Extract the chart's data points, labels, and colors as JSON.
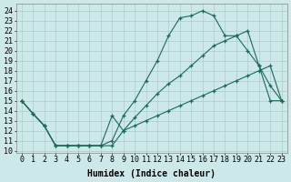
{
  "xlabel": "Humidex (Indice chaleur)",
  "background_color": "#cce8e8",
  "grid_color": "#aacccc",
  "line_color": "#1a6a5a",
  "xlim": [
    -0.5,
    23.5
  ],
  "ylim": [
    9.8,
    24.7
  ],
  "xtick_vals": [
    0,
    1,
    2,
    3,
    4,
    5,
    6,
    7,
    8,
    9,
    10,
    11,
    12,
    13,
    14,
    15,
    16,
    17,
    18,
    19,
    20,
    21,
    22,
    23
  ],
  "xtick_labels": [
    "0",
    "1",
    "2",
    "3",
    "4",
    "5",
    "6",
    "7",
    "8",
    "9",
    "10",
    "11",
    "12",
    "13",
    "14",
    "15",
    "16",
    "17",
    "18",
    "19",
    "20",
    "21",
    "22",
    "23"
  ],
  "ytick_vals": [
    10,
    11,
    12,
    13,
    14,
    15,
    16,
    17,
    18,
    19,
    20,
    21,
    22,
    23,
    24
  ],
  "ytick_labels": [
    "10",
    "11",
    "12",
    "13",
    "14",
    "15",
    "16",
    "17",
    "18",
    "19",
    "20",
    "21",
    "22",
    "23",
    "24"
  ],
  "curve1_x": [
    0,
    1,
    2,
    3,
    4,
    5,
    6,
    7,
    8,
    9,
    10,
    11,
    12,
    13,
    14,
    15,
    16,
    17,
    18,
    19,
    20,
    21,
    22,
    23
  ],
  "curve1_y": [
    15.0,
    13.7,
    12.5,
    10.5,
    10.5,
    10.5,
    10.5,
    10.5,
    11.0,
    13.5,
    15.0,
    17.0,
    19.0,
    21.5,
    23.3,
    23.5,
    24.0,
    23.5,
    21.5,
    21.5,
    20.0,
    18.5,
    16.5,
    15.0
  ],
  "curve2_x": [
    0,
    1,
    2,
    3,
    4,
    5,
    6,
    7,
    8,
    9,
    10,
    11,
    12,
    13,
    14,
    15,
    16,
    17,
    18,
    19,
    20,
    21,
    22,
    23
  ],
  "curve2_y": [
    15.0,
    13.7,
    12.5,
    10.5,
    10.5,
    10.5,
    10.5,
    10.5,
    10.5,
    12.0,
    13.3,
    14.5,
    15.7,
    16.7,
    17.5,
    18.5,
    19.5,
    20.5,
    21.0,
    21.5,
    22.0,
    18.5,
    15.0,
    15.0
  ],
  "curve3_x": [
    0,
    1,
    2,
    3,
    4,
    5,
    6,
    7,
    8,
    9,
    10,
    11,
    12,
    13,
    14,
    15,
    16,
    17,
    18,
    19,
    20,
    21,
    22,
    23
  ],
  "curve3_y": [
    15.0,
    13.7,
    12.5,
    10.5,
    10.5,
    10.5,
    10.5,
    10.5,
    13.5,
    12.0,
    12.5,
    13.0,
    13.5,
    14.0,
    14.5,
    15.0,
    15.5,
    16.0,
    16.5,
    17.0,
    17.5,
    18.0,
    18.5,
    15.0
  ],
  "font_size": 6,
  "xlabel_font_size": 7
}
